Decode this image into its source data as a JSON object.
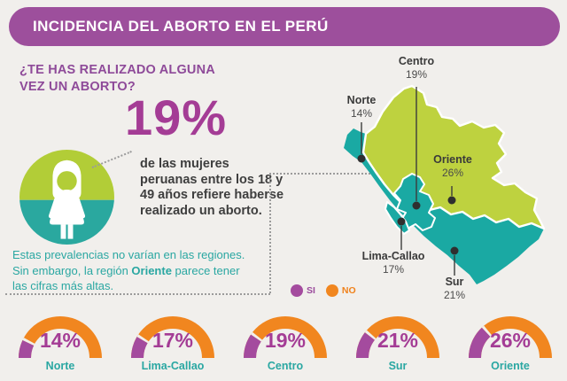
{
  "header": {
    "title": "INCIDENCIA DEL ABORTO EN EL PERÚ"
  },
  "intro": {
    "question": "¿TE HAS REALIZADO ALGUNA VEZ UN ABORTO?",
    "stat_value": "19%",
    "stat_description": "de las mujeres peruanas entre los 18 y 49 años refiere haberse realizado un aborto.",
    "note_before": "Estas prevalencias no varían en las regiones. Sin embargo, la región ",
    "note_highlight": "Oriente",
    "note_after": " parece tener las cifras más altas."
  },
  "legend": {
    "yes": "SI",
    "no": "NO"
  },
  "map": {
    "labels": [
      {
        "name": "Norte",
        "value": "14%"
      },
      {
        "name": "Centro",
        "value": "19%"
      },
      {
        "name": "Oriente",
        "value": "26%"
      },
      {
        "name": "Lima-Callao",
        "value": "17%"
      },
      {
        "name": "Sur",
        "value": "21%"
      }
    ]
  },
  "chart_data": {
    "type": "pie",
    "variant": "semicircle-gauge-row",
    "categories": [
      "Norte",
      "Lima-Callao",
      "Centro",
      "Sur",
      "Oriente"
    ],
    "values": [
      14,
      17,
      19,
      21,
      26
    ],
    "value_labels": [
      "14%",
      "17%",
      "19%",
      "21%",
      "26%"
    ],
    "max": 100,
    "legend_entries": [
      "SI",
      "NO"
    ],
    "colors": {
      "si": "#a44b9e",
      "no": "#f1861f",
      "labels": "#2aa7a2"
    }
  },
  "colors": {
    "banner": "#9d4f9c",
    "question_purple": "#8e4a99",
    "stat_purple": "#a43c95",
    "teal_text": "#2aa7a2",
    "map_teal": "#1aa9a3",
    "map_lime": "#bed23f",
    "icon_lime": "#b2cd37",
    "icon_teal": "#2aa89f",
    "orange": "#f1861f",
    "background": "#f1efec",
    "dark_text": "#3e3e3e"
  }
}
